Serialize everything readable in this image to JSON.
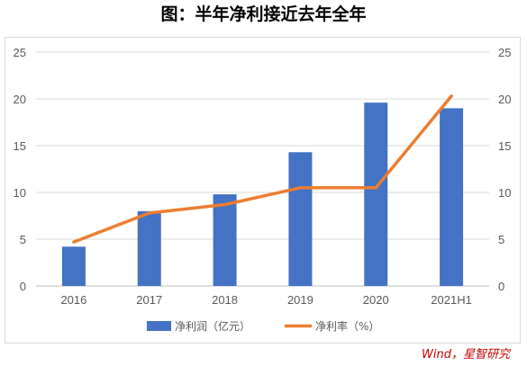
{
  "title": "图：半年净利接近去年全年",
  "source": "Wind，星智研究",
  "chart_data": {
    "type": "bar",
    "categories": [
      "2016",
      "2017",
      "2018",
      "2019",
      "2020",
      "2021H1"
    ],
    "series": [
      {
        "name": "净利润（亿元）",
        "type": "bar",
        "axis": "left",
        "color": "#4472c4",
        "values": [
          4.2,
          8.0,
          9.8,
          14.3,
          19.6,
          19.0
        ]
      },
      {
        "name": "净利率（%）",
        "type": "line",
        "axis": "right",
        "color": "#ed7d31",
        "values": [
          4.7,
          7.8,
          8.7,
          10.5,
          10.5,
          20.3
        ]
      }
    ],
    "y_left": {
      "ylim": [
        0,
        25
      ],
      "ticks": [
        "0",
        "5",
        "10",
        "15",
        "20",
        "25"
      ]
    },
    "y_right": {
      "ylim": [
        0,
        25
      ],
      "ticks": [
        "0",
        "5",
        "10",
        "15",
        "20",
        "25"
      ]
    },
    "grid": true,
    "legend": "bottom"
  }
}
